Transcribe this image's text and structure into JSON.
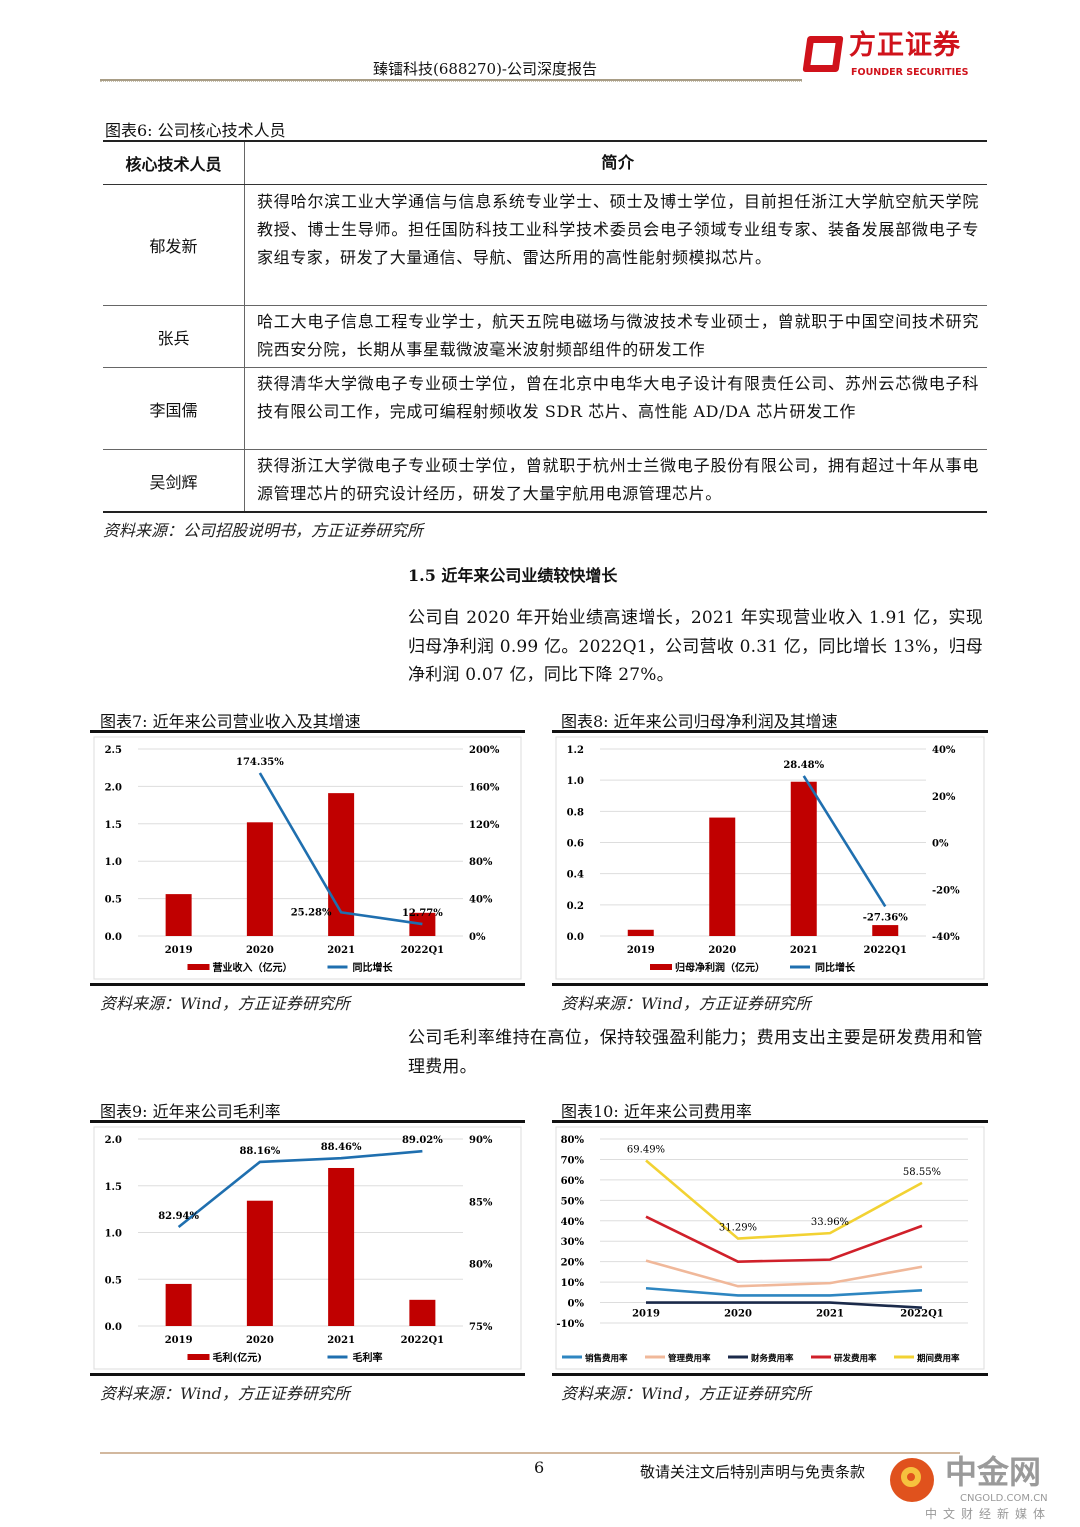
{
  "header": {
    "title": "臻镭科技(688270)-公司深度报告",
    "logo_cn": "方正证券",
    "logo_en": "FOUNDER SECURITIES",
    "accent": "#d0121b"
  },
  "table6": {
    "caption": "图表6:  公司核心技术人员",
    "headers": [
      "核心技术人员",
      "简介"
    ],
    "rows": [
      {
        "name": "郁发新",
        "intro": "获得哈尔滨工业大学通信与信息系统专业学士、硕士及博士学位，目前担任浙江大学航空航天学院教授、博士生导师。担任国防科技工业科学技术委员会电子领域专业组专家、装备发展部微电子专家组专家，研发了大量通信、导航、雷达所用的高性能射频模拟芯片。"
      },
      {
        "name": "张兵",
        "intro": "哈工大电子信息工程专业学士，航天五院电磁场与微波技术专业硕士，曾就职于中国空间技术研究院西安分院，长期从事星载微波毫米波射频部组件的研发工作"
      },
      {
        "name": "李国儒",
        "intro": "获得清华大学微电子专业硕士学位，曾在北京中电华大电子设计有限责任公司、苏州云芯微电子科技有限公司工作，完成可编程射频收发 SDR 芯片、高性能 AD/DA 芯片研发工作"
      },
      {
        "name": "吴剑辉",
        "intro": "获得浙江大学微电子专业硕士学位，曾就职于杭州士兰微电子股份有限公司，拥有超过十年从事电源管理芯片的研究设计经历，研发了大量宇航用电源管理芯片。"
      }
    ],
    "source": "资料来源：公司招股说明书，方正证券研究所"
  },
  "section": {
    "heading": "1.5 近年来公司业绩较快增长",
    "para1": "公司自 2020 年开始业绩高速增长，2021 年实现营业收入 1.91 亿，实现归母净利润 0.99 亿。2022Q1，公司营收 0.31 亿，同比增长 13%，归母净利润 0.07 亿，同比下降 27%。",
    "para2": "公司毛利率维持在高位，保持较强盈利能力；费用支出主要是研发费用和管理费用。"
  },
  "figures": {
    "cap7": "图表7:  近年来公司营业收入及其增速",
    "cap8": "图表8:  近年来公司归母净利润及其增速",
    "cap9": "图表9:  近年来公司毛利率",
    "cap10": "图表10:  近年来公司费用率",
    "source": "资料来源：Wind，方正证券研究所"
  },
  "chart_data": [
    {
      "type": "bar+line",
      "categories": [
        "2019",
        "2020",
        "2021",
        "2022Q1"
      ],
      "ylim": [
        0,
        2.5
      ],
      "yticks": [
        "0.0",
        "0.5",
        "1.0",
        "1.5",
        "2.0",
        "2.5"
      ],
      "y2lim": [
        0,
        200
      ],
      "y2ticks": [
        "0%",
        "40%",
        "80%",
        "120%",
        "160%",
        "200%"
      ],
      "series": [
        {
          "name": "营业收入（亿元）",
          "type": "bar",
          "axis": "left",
          "color": "#c00000",
          "values": [
            0.56,
            1.52,
            1.91,
            0.31
          ]
        },
        {
          "name": "同比增长",
          "type": "line",
          "axis": "right",
          "color": "#1f6faf",
          "values": [
            null,
            174.35,
            25.28,
            12.77
          ],
          "labels": [
            "",
            "174.35%",
            "25.28%",
            "12.77%"
          ]
        }
      ],
      "legend": "bottom",
      "grid": true
    },
    {
      "type": "bar+line",
      "categories": [
        "2019",
        "2020",
        "2021",
        "2022Q1"
      ],
      "ylim": [
        0,
        1.2
      ],
      "yticks": [
        "0.0",
        "0.2",
        "0.4",
        "0.6",
        "0.8",
        "1.0",
        "1.2"
      ],
      "y2lim": [
        -40,
        40
      ],
      "y2ticks": [
        "-40%",
        "-20%",
        "0%",
        "20%",
        "40%"
      ],
      "series": [
        {
          "name": "归母净利润（亿元）",
          "type": "bar",
          "axis": "left",
          "color": "#c00000",
          "values": [
            0.04,
            0.76,
            0.99,
            0.07
          ]
        },
        {
          "name": "同比增长",
          "type": "line",
          "axis": "right",
          "color": "#1f6faf",
          "values": [
            null,
            null,
            28.48,
            -27.36
          ],
          "labels": [
            "",
            "",
            "28.48%",
            "-27.36%"
          ]
        }
      ],
      "legend": "bottom",
      "grid": true
    },
    {
      "type": "bar+line",
      "categories": [
        "2019",
        "2020",
        "2021",
        "2022Q1"
      ],
      "ylim": [
        0,
        2.0
      ],
      "yticks": [
        "0.0",
        "0.5",
        "1.0",
        "1.5",
        "2.0"
      ],
      "y2lim": [
        75,
        90
      ],
      "y2ticks": [
        "75%",
        "80%",
        "85%",
        "90%"
      ],
      "series": [
        {
          "name": "毛利(亿元)",
          "type": "bar",
          "axis": "left",
          "color": "#c00000",
          "values": [
            0.45,
            1.34,
            1.69,
            0.28
          ]
        },
        {
          "name": "毛利率",
          "type": "line",
          "axis": "right",
          "color": "#1f6faf",
          "values": [
            82.94,
            88.16,
            88.46,
            89.02
          ],
          "labels": [
            "82.94%",
            "88.16%",
            "88.46%",
            "89.02%"
          ]
        }
      ],
      "legend": "bottom",
      "grid": true
    },
    {
      "type": "line",
      "categories": [
        "2019",
        "2020",
        "2021",
        "2022Q1"
      ],
      "ylim": [
        -10,
        80
      ],
      "yticks": [
        "-10%",
        "0%",
        "10%",
        "20%",
        "30%",
        "40%",
        "50%",
        "60%",
        "70%",
        "80%"
      ],
      "series": [
        {
          "name": "销售费用率",
          "color": "#2e86c1",
          "values": [
            7,
            3.5,
            3.5,
            6
          ]
        },
        {
          "name": "管理费用率",
          "color": "#f0b89a",
          "values": [
            20.5,
            8,
            9.5,
            17.5
          ]
        },
        {
          "name": "财务费用率",
          "color": "#1b2a4a",
          "values": [
            0,
            0,
            0,
            -2.5
          ]
        },
        {
          "name": "研发费用率",
          "color": "#d0202a",
          "values": [
            42,
            20,
            21,
            37.5
          ]
        },
        {
          "name": "期间费用率",
          "color": "#f2d233",
          "values": [
            69.49,
            31.29,
            33.96,
            58.55
          ],
          "labels": [
            "69.49%",
            "31.29%",
            "33.96%",
            "58.55%"
          ]
        }
      ],
      "legend": "bottom",
      "grid": true
    }
  ],
  "footer": {
    "page": "6",
    "disclaimer": "敬请关注文后特别声明与免责条款",
    "watermark_cn": "中金网",
    "watermark_en": "CNGOLD.COM.CN",
    "watermark_sub": "中文财经新媒体"
  }
}
